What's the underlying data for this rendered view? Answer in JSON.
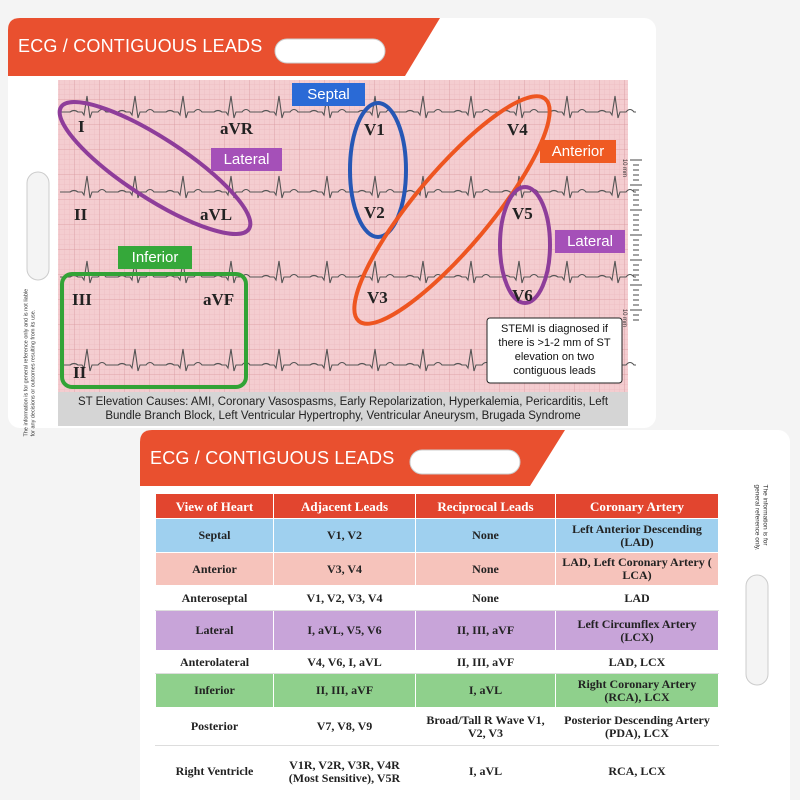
{
  "front_card": {
    "title": "ECG / CONTIGUOUS LEADS",
    "leads": [
      "I",
      "aVR",
      "V1",
      "V4",
      "II",
      "aVL",
      "V2",
      "V5",
      "III",
      "aVF",
      "V3",
      "V6",
      "II"
    ],
    "groups": [
      "Septal",
      "Lateral",
      "Anterior",
      "Lateral",
      "Inferior"
    ],
    "note": "STEMI is diagnosed if there is >1-2 mm of ST elevation on two contiguous leads",
    "st_elevation": {
      "label": "ST Elevation Causes:",
      "text": "AMI, Coronary Vasospasms, Early Repolarization, Hyperkalemia, Pericarditis, Left Bundle Branch Block, Left Ventricular Hypertrophy, Ventricular Aneurysm, Brugada Syndrome"
    },
    "ruler_labels": [
      "10 mm",
      "10 mm"
    ],
    "disclaimer": "The information is for general reference only and is not liable for any decisions or outcomes resulting from its use."
  },
  "back_card": {
    "title": "ECG / CONTIGUOUS LEADS",
    "disclaimer": "The information is for general reference only.",
    "table": {
      "header": [
        "View of Heart",
        "Adjacent Leads",
        "Reciprocal Leads",
        "Coronary Artery"
      ],
      "rows": [
        [
          "Septal",
          "V1, V2",
          "None",
          "Left Anterior Descending (LAD)"
        ],
        [
          "Anterior",
          "V3, V4",
          "None",
          "LAD, Left Coronary Artery ( LCA)"
        ],
        [
          "Anteroseptal",
          "V1, V2, V3, V4",
          "None",
          "LAD"
        ],
        [
          "Lateral",
          "I, aVL, V5, V6",
          "II, III, aVF",
          "Left Circumflex Artery (LCX)"
        ],
        [
          "Anterolateral",
          "V4, V6, I, aVL",
          "II, III, aVF",
          "LAD, LCX"
        ],
        [
          "Inferior",
          "II, III, aVF",
          "I, aVL",
          "Right Coronary Artery (RCA), LCX"
        ],
        [
          "Posterior",
          "V7, V8, V9",
          "Broad/Tall R Wave V1, V2, V3",
          "Posterior Descending Artery (PDA), LCX"
        ],
        [
          "Right Ventricle",
          "V1R, V2R, V3R, V4R (Most Sensitive), V5R",
          "I, aVL",
          "RCA, LCX"
        ]
      ]
    }
  }
}
